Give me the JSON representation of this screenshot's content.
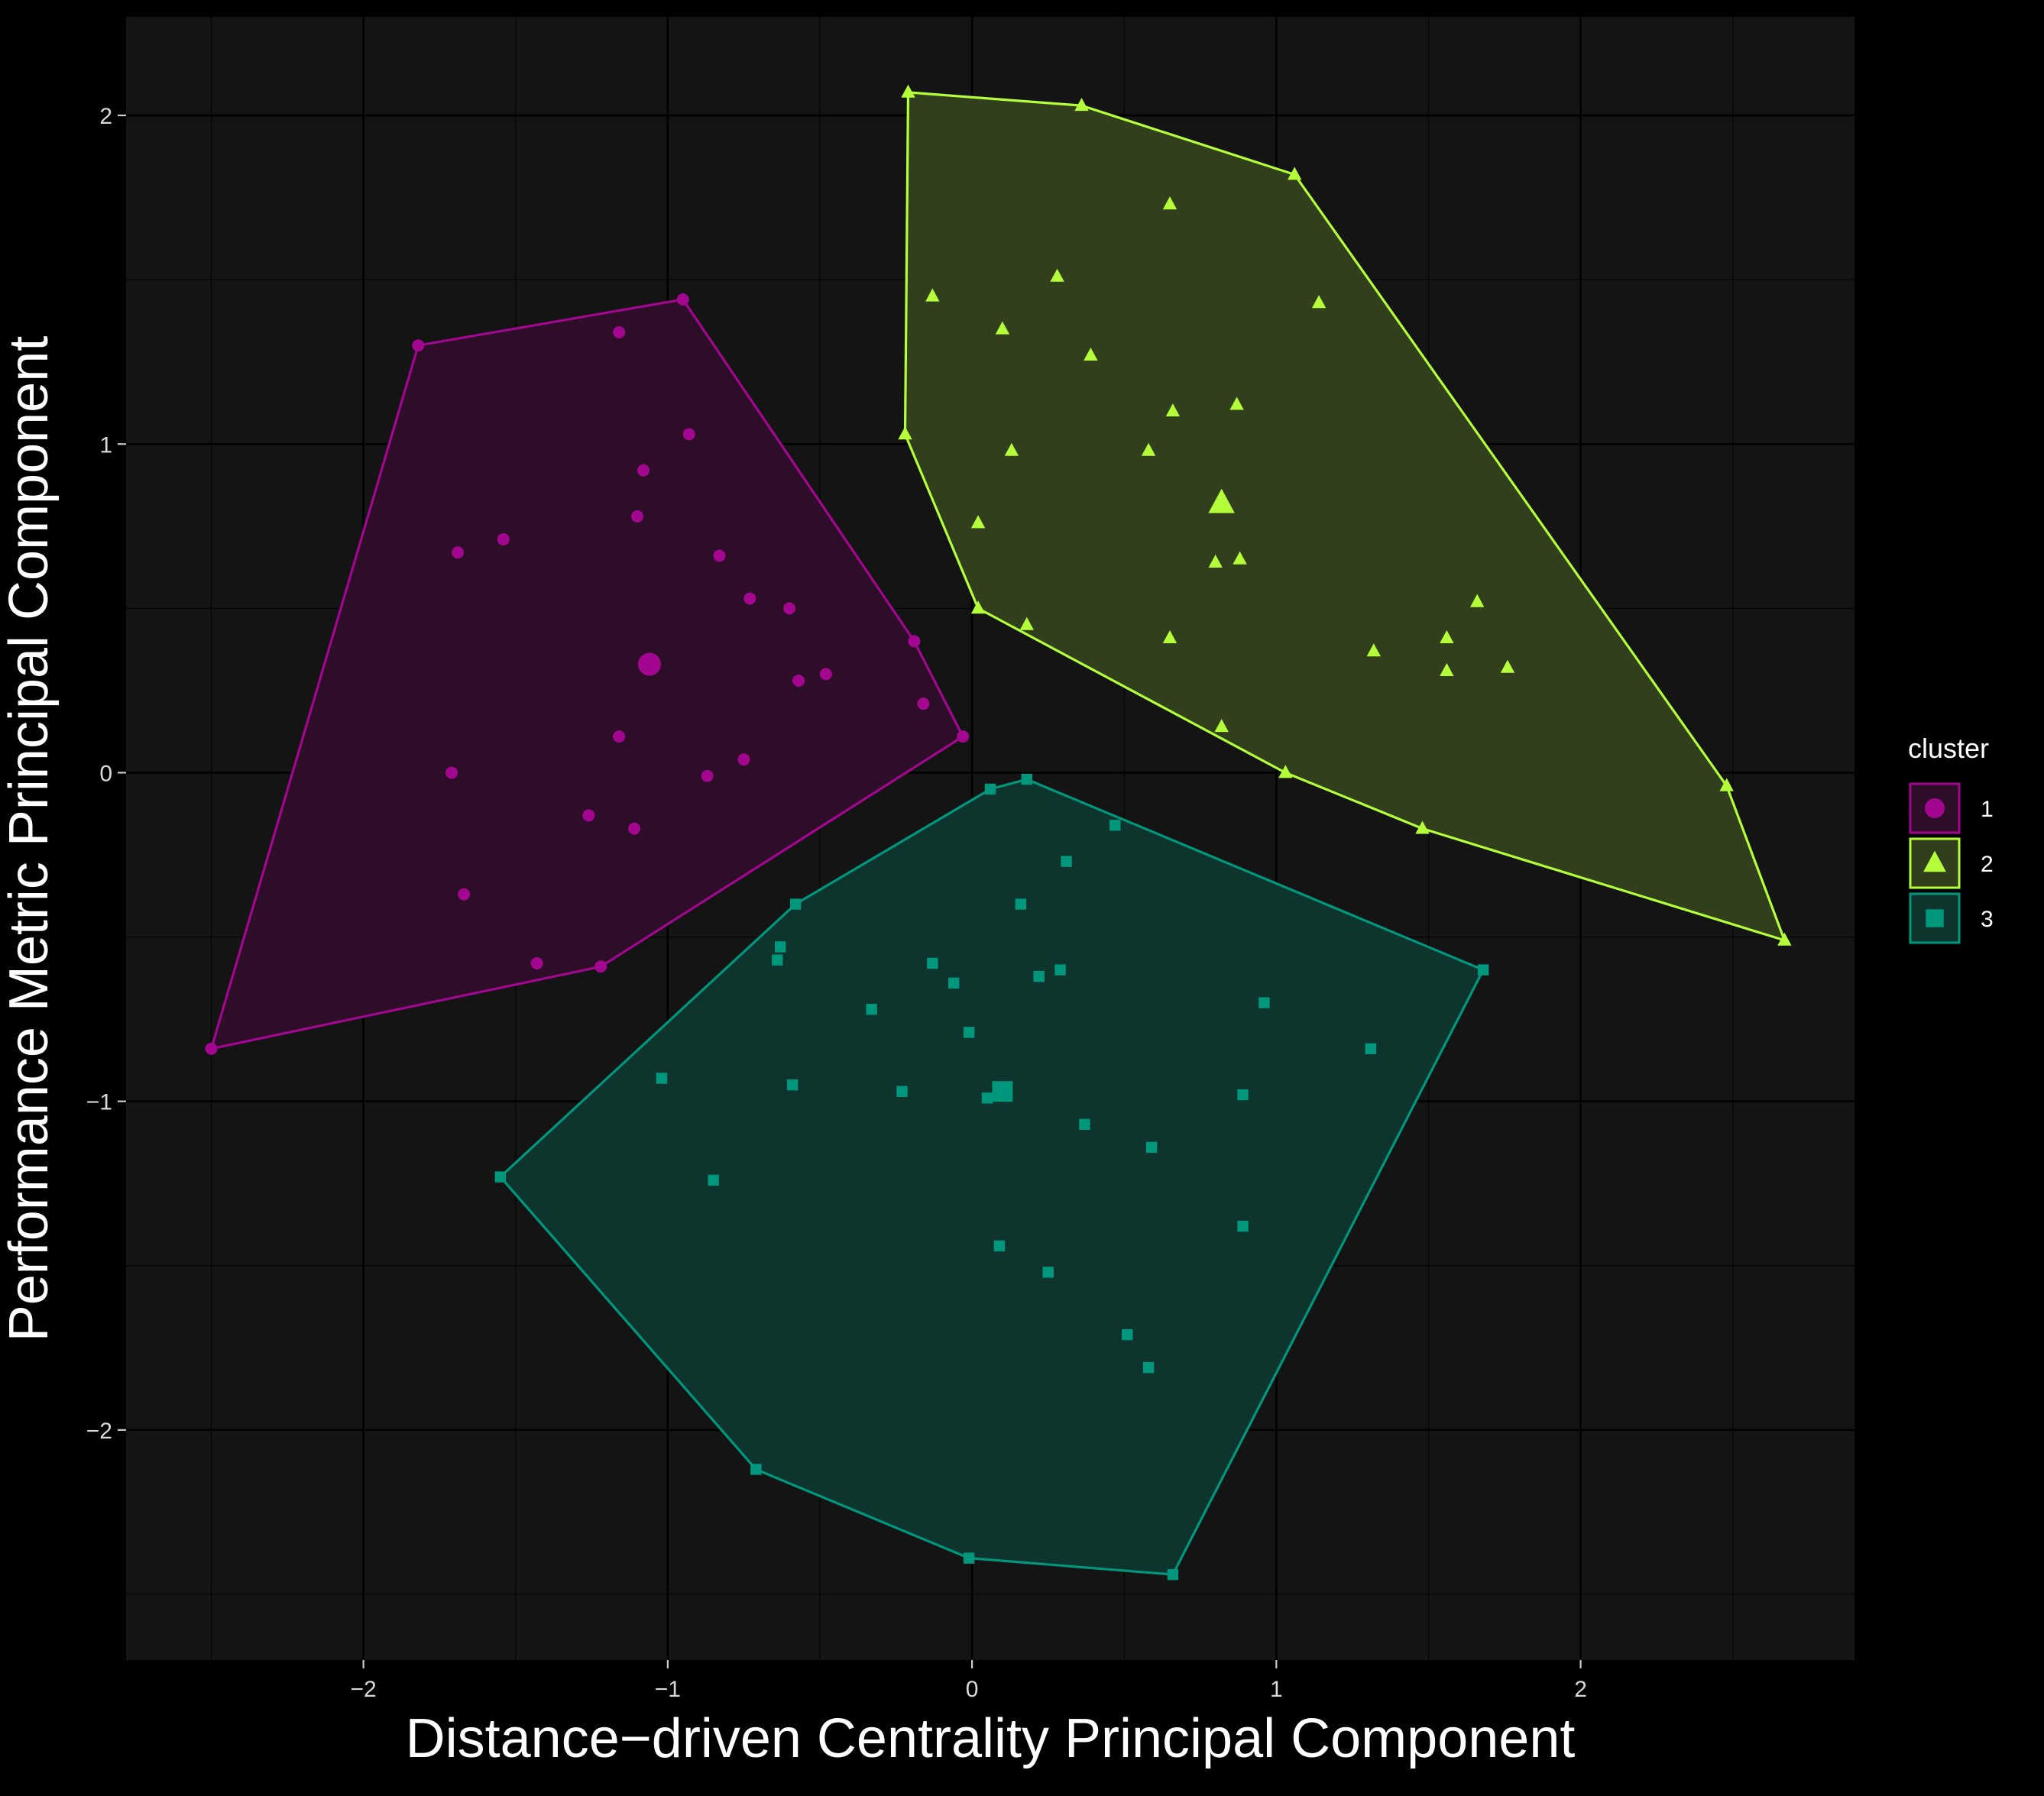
{
  "chart_data": {
    "type": "scatter",
    "xlabel": "Distance−driven Centrality Principal Component",
    "ylabel": "Performance Metric Principal Component",
    "xlim": [
      -2.78,
      2.9
    ],
    "ylim": [
      -2.7,
      2.3
    ],
    "x_ticks": [
      -2,
      -1,
      0,
      1,
      2
    ],
    "x_tick_labels": [
      "−2",
      "−1",
      "0",
      "1",
      "2"
    ],
    "y_ticks": [
      -2,
      -1,
      0,
      1,
      2
    ],
    "y_tick_labels": [
      "−2",
      "−1",
      "0",
      "1",
      "2"
    ],
    "grid": true,
    "background": "#141414",
    "legend": {
      "title": "cluster",
      "position": "right",
      "entries": [
        {
          "label": "1",
          "color": "#a3078f",
          "shape": "circle"
        },
        {
          "label": "2",
          "color": "#b4ff3a",
          "shape": "triangle"
        },
        {
          "label": "3",
          "color": "#00977d",
          "shape": "square"
        }
      ]
    },
    "series": [
      {
        "name": "1",
        "color": "#a3078f",
        "fill": "#2e0d28",
        "shape": "circle",
        "centroid": [
          -1.06,
          0.33
        ],
        "hull": [
          [
            -1.82,
            1.3
          ],
          [
            -0.95,
            1.44
          ],
          [
            -0.19,
            0.4
          ],
          [
            -0.03,
            0.11
          ],
          [
            -1.22,
            -0.59
          ],
          [
            -2.5,
            -0.84
          ]
        ],
        "points": [
          [
            -1.82,
            1.3
          ],
          [
            -0.95,
            1.44
          ],
          [
            -1.16,
            1.34
          ],
          [
            -0.93,
            1.03
          ],
          [
            -1.08,
            0.92
          ],
          [
            -1.1,
            0.78
          ],
          [
            -1.69,
            0.67
          ],
          [
            -1.54,
            0.71
          ],
          [
            -0.83,
            0.66
          ],
          [
            -0.73,
            0.53
          ],
          [
            -0.6,
            0.5
          ],
          [
            -0.19,
            0.4
          ],
          [
            -0.48,
            0.3
          ],
          [
            -0.57,
            0.28
          ],
          [
            -0.16,
            0.21
          ],
          [
            -0.03,
            0.11
          ],
          [
            -1.16,
            0.11
          ],
          [
            -0.75,
            0.04
          ],
          [
            -0.87,
            -0.01
          ],
          [
            -1.71,
            0.0
          ],
          [
            -1.26,
            -0.13
          ],
          [
            -1.11,
            -0.17
          ],
          [
            -1.67,
            -0.37
          ],
          [
            -1.43,
            -0.58
          ],
          [
            -1.22,
            -0.59
          ],
          [
            -2.5,
            -0.84
          ]
        ]
      },
      {
        "name": "2",
        "color": "#b4ff3a",
        "fill": "#313f1c",
        "shape": "triangle",
        "centroid": [
          0.82,
          0.82
        ],
        "hull": [
          [
            -0.21,
            2.07
          ],
          [
            0.36,
            2.03
          ],
          [
            1.06,
            1.82
          ],
          [
            2.48,
            -0.04
          ],
          [
            2.67,
            -0.51
          ],
          [
            1.48,
            -0.17
          ],
          [
            1.03,
            0.0
          ],
          [
            0.02,
            0.5
          ],
          [
            -0.22,
            1.03
          ]
        ],
        "points": [
          [
            -0.21,
            2.07
          ],
          [
            0.36,
            2.03
          ],
          [
            1.06,
            1.82
          ],
          [
            0.65,
            1.73
          ],
          [
            0.28,
            1.51
          ],
          [
            -0.13,
            1.45
          ],
          [
            1.14,
            1.43
          ],
          [
            0.1,
            1.35
          ],
          [
            0.39,
            1.27
          ],
          [
            0.66,
            1.1
          ],
          [
            0.87,
            1.12
          ],
          [
            -0.22,
            1.03
          ],
          [
            0.13,
            0.98
          ],
          [
            0.58,
            0.98
          ],
          [
            0.02,
            0.76
          ],
          [
            0.8,
            0.64
          ],
          [
            0.88,
            0.65
          ],
          [
            1.66,
            0.52
          ],
          [
            0.02,
            0.5
          ],
          [
            0.18,
            0.45
          ],
          [
            0.65,
            0.41
          ],
          [
            1.56,
            0.41
          ],
          [
            1.32,
            0.37
          ],
          [
            1.56,
            0.31
          ],
          [
            1.76,
            0.32
          ],
          [
            0.82,
            0.14
          ],
          [
            1.03,
            0.0
          ],
          [
            2.48,
            -0.04
          ],
          [
            1.48,
            -0.17
          ],
          [
            2.67,
            -0.51
          ]
        ]
      },
      {
        "name": "3",
        "color": "#00977d",
        "fill": "#0d352e",
        "shape": "square",
        "centroid": [
          0.1,
          -0.97
        ],
        "hull": [
          [
            0.18,
            -0.02
          ],
          [
            1.68,
            -0.6
          ],
          [
            0.66,
            -2.44
          ],
          [
            -0.01,
            -2.39
          ],
          [
            -0.71,
            -2.12
          ],
          [
            -1.55,
            -1.23
          ],
          [
            -0.58,
            -0.4
          ],
          [
            0.06,
            -0.05
          ]
        ],
        "points": [
          [
            0.06,
            -0.05
          ],
          [
            0.18,
            -0.02
          ],
          [
            0.47,
            -0.16
          ],
          [
            0.31,
            -0.27
          ],
          [
            -0.58,
            -0.4
          ],
          [
            0.16,
            -0.4
          ],
          [
            -0.63,
            -0.53
          ],
          [
            -0.64,
            -0.57
          ],
          [
            -0.13,
            -0.58
          ],
          [
            0.29,
            -0.6
          ],
          [
            1.68,
            -0.6
          ],
          [
            0.22,
            -0.62
          ],
          [
            -0.06,
            -0.64
          ],
          [
            0.96,
            -0.7
          ],
          [
            -0.33,
            -0.72
          ],
          [
            -0.01,
            -0.79
          ],
          [
            1.31,
            -0.84
          ],
          [
            -1.02,
            -0.93
          ],
          [
            -0.59,
            -0.95
          ],
          [
            -0.23,
            -0.97
          ],
          [
            0.05,
            -0.99
          ],
          [
            0.89,
            -0.98
          ],
          [
            0.37,
            -1.07
          ],
          [
            0.59,
            -1.14
          ],
          [
            -1.55,
            -1.23
          ],
          [
            -0.85,
            -1.24
          ],
          [
            0.89,
            -1.38
          ],
          [
            0.09,
            -1.44
          ],
          [
            0.25,
            -1.52
          ],
          [
            0.51,
            -1.71
          ],
          [
            0.58,
            -1.81
          ],
          [
            -0.71,
            -2.12
          ],
          [
            -0.01,
            -2.39
          ],
          [
            0.66,
            -2.44
          ]
        ]
      }
    ]
  }
}
